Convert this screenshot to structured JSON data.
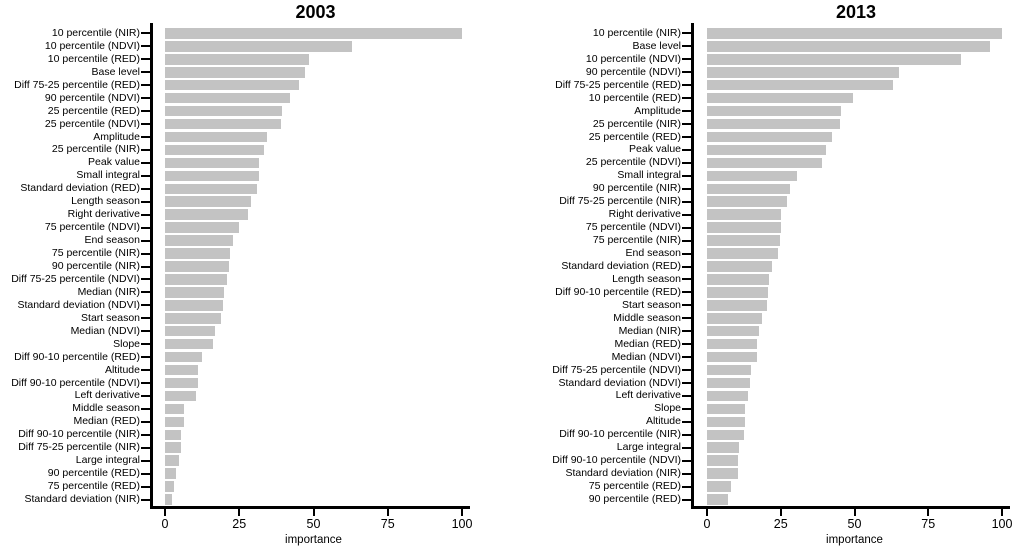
{
  "figure": {
    "background": "#ffffff",
    "bar_color": "#c3c3c3",
    "axis_color": "#000000",
    "text_color": "#000000"
  },
  "chart_data": [
    {
      "type": "bar",
      "orientation": "horizontal",
      "title": "2003",
      "xlabel": "importance",
      "xlim": [
        0,
        100
      ],
      "xticks": [
        0,
        25,
        50,
        75,
        100
      ],
      "grid": false,
      "legend": "none",
      "categories": [
        "10 percentile (NIR)",
        "10 percentile (NDVI)",
        "10 percentile (RED)",
        "Base level",
        "Diff 75-25 percentile (RED)",
        "90 percentile (NDVI)",
        "25 percentile (RED)",
        "25 percentile (NDVI)",
        "Amplitude",
        "25 percentile (NIR)",
        "Peak value",
        "Small integral",
        "Standard deviation (RED)",
        "Length season",
        "Right derivative",
        "75 percentile (NDVI)",
        "End season",
        "75 percentile (NIR)",
        "90 percentile (NIR)",
        "Diff 75-25 percentile (NDVI)",
        "Median (NIR)",
        "Standard deviation (NDVI)",
        "Start season",
        "Median (NDVI)",
        "Slope",
        "Diff 90-10 percentile (RED)",
        "Altitude",
        "Diff 90-10 percentile (NDVI)",
        "Left derivative",
        "Middle season",
        "Median (RED)",
        "Diff 90-10 percentile (NIR)",
        "Diff 75-25 percentile (NIR)",
        "Large integral",
        "90 percentile (RED)",
        "75 percentile (RED)",
        "Standard deviation (NIR)"
      ],
      "values": [
        100,
        63,
        48.5,
        47,
        45,
        42,
        39.5,
        39,
        34.5,
        33.5,
        31.5,
        31.5,
        31,
        29,
        28,
        25,
        23,
        22,
        21.5,
        21,
        20,
        19.5,
        19,
        17,
        16,
        12.5,
        11,
        11,
        10.5,
        6.5,
        6.3,
        5.4,
        5.3,
        4.7,
        3.6,
        2.9,
        2.5
      ]
    },
    {
      "type": "bar",
      "orientation": "horizontal",
      "title": "2013",
      "xlabel": "importance",
      "xlim": [
        0,
        100
      ],
      "xticks": [
        0,
        25,
        50,
        75,
        100
      ],
      "grid": false,
      "legend": "none",
      "categories": [
        "10 percentile (NIR)",
        "Base level",
        "10 percentile (NDVI)",
        "90 percentile (NDVI)",
        "Diff 75-25 percentile (RED)",
        "10 percentile (RED)",
        "Amplitude",
        "25 percentile (NIR)",
        "25 percentile (RED)",
        "Peak value",
        "25 percentile (NDVI)",
        "Small integral",
        "90 percentile (NIR)",
        "Diff 75-25 percentile (NIR)",
        "Right derivative",
        "75 percentile (NDVI)",
        "75 percentile (NIR)",
        "End season",
        "Standard deviation (RED)",
        "Length season",
        "Diff 90-10 percentile (RED)",
        "Start season",
        "Middle season",
        "Median (NIR)",
        "Median (RED)",
        "Median (NDVI)",
        "Diff 75-25 percentile (NDVI)",
        "Standard deviation (NDVI)",
        "Left derivative",
        "Slope",
        "Altitude",
        "Diff 90-10 percentile (NIR)",
        "Large integral",
        "Diff 90-10 percentile (NDVI)",
        "Standard deviation (NIR)",
        "75 percentile (RED)",
        "90 percentile (RED)"
      ],
      "values": [
        100,
        96,
        86,
        65,
        63,
        49.5,
        45.5,
        45,
        42.5,
        40.5,
        39,
        30.5,
        28,
        27,
        25.2,
        25,
        24.8,
        24,
        22,
        21,
        20.8,
        20.3,
        18.5,
        17.5,
        17.1,
        16.8,
        15,
        14.5,
        14,
        13,
        13,
        12.5,
        11,
        10.6,
        10.5,
        8,
        7
      ]
    }
  ]
}
